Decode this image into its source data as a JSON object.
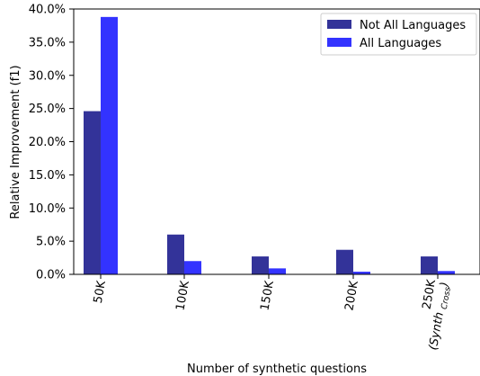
{
  "chart_data": {
    "type": "bar",
    "categories": [
      "50K",
      "100K",
      "150K",
      "200K",
      "250K"
    ],
    "category_sublabel": {
      "index": 4,
      "text": "Synth",
      "subscript": "Cross"
    },
    "series": [
      {
        "name": "Not All Languages",
        "values": [
          24.6,
          6.0,
          2.7,
          3.7,
          2.7
        ],
        "color": "#333399"
      },
      {
        "name": "All Languages",
        "values": [
          38.8,
          2.0,
          0.9,
          0.4,
          0.5
        ],
        "color": "#3333ff"
      }
    ],
    "xlabel": "Number of synthetic questions",
    "ylabel": "Relative Improvement (f1)",
    "ylim": [
      0,
      40
    ],
    "yticks": [
      "0.0%",
      "5.0%",
      "10.0%",
      "15.0%",
      "20.0%",
      "25.0%",
      "30.0%",
      "35.0%",
      "40.0%"
    ],
    "legend_position": "top-right",
    "grid": false
  }
}
